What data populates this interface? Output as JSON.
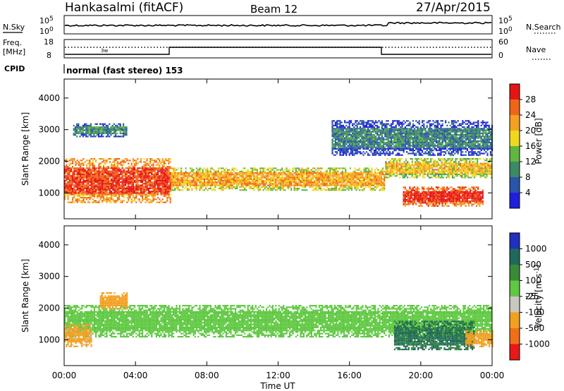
{
  "header": {
    "station": "Hankasalmi (fitACF)",
    "beam": "Beam 12",
    "date": "27/Apr/2015"
  },
  "strip_panels": {
    "nsky_label": "N.Sky",
    "nsearch_label": "N.Search",
    "nsky_ticks": [
      "10^5",
      "10^0"
    ],
    "nsearch_ticks": [
      "10^5",
      "10^0"
    ],
    "freq_label_1": "Freq.",
    "freq_label_2": "[MHz]",
    "freq_ticks": [
      "18",
      "8"
    ],
    "nave_label": "Nave",
    "nave_ticks": [
      "60",
      "0"
    ],
    "cpid_label": "CPID",
    "cpid_text": "normal (fast stereo) 153",
    "note_text": "3w"
  },
  "x_axis": {
    "ticks": [
      "00:00",
      "04:00",
      "08:00",
      "12:00",
      "16:00",
      "20:00",
      "00:00"
    ],
    "label": "Time UT"
  },
  "y_axis": {
    "label": "Slant Range [km]",
    "ticks": [
      "4000",
      "3000",
      "2000",
      "1000"
    ]
  },
  "power_colorbar": {
    "label": "Power [dB]",
    "ticks": [
      "28",
      "24",
      "20",
      "16",
      "12",
      "8",
      "4"
    ],
    "colors": [
      "#1f1fe0",
      "#2a55a8",
      "#3c8a64",
      "#5fb640",
      "#f0d820",
      "#f5a020",
      "#f06418",
      "#e81414"
    ]
  },
  "velocity_colorbar": {
    "label": "Velocity [m s^-1]",
    "ticks": [
      "1000",
      "500",
      "100",
      "25",
      "-25",
      "-100",
      "-500",
      "-1000"
    ],
    "colors": [
      "#2030c0",
      "#1f6a5a",
      "#3a8a3a",
      "#5ec840",
      "#c8c8c0",
      "#f2a020",
      "#f07018",
      "#e81818"
    ]
  },
  "chart_data": [
    {
      "type": "heatmap",
      "title": "Power",
      "xlabel": "Time UT",
      "ylabel": "Slant Range [km]",
      "x_range": [
        "00:00",
        "24:00"
      ],
      "ylim": [
        180,
        4600
      ],
      "colorbar_label": "Power [dB]",
      "clim": [
        0,
        32
      ],
      "bands": [
        {
          "t_start": 0,
          "t_end": 6,
          "range_low": 700,
          "range_high": 2100,
          "power_db": 26
        },
        {
          "t_start": 6,
          "t_end": 18,
          "range_low": 1100,
          "range_high": 1800,
          "power_db": 20
        },
        {
          "t_start": 18,
          "t_end": 24,
          "range_low": 1500,
          "range_high": 2100,
          "power_db": 18
        },
        {
          "t_start": 19,
          "t_end": 23.5,
          "range_low": 600,
          "range_high": 1200,
          "power_db": 28
        },
        {
          "t_start": 0.5,
          "t_end": 3.5,
          "range_low": 2800,
          "range_high": 3200,
          "power_db": 8
        },
        {
          "t_start": 15,
          "t_end": 24,
          "range_low": 2200,
          "range_high": 3300,
          "power_db": 7
        }
      ]
    },
    {
      "type": "heatmap",
      "title": "Velocity",
      "xlabel": "Time UT",
      "ylabel": "Slant Range [km]",
      "x_range": [
        "00:00",
        "24:00"
      ],
      "ylim": [
        180,
        4600
      ],
      "colorbar_label": "Velocity [m s^-1]",
      "clim": [
        -1000,
        1000
      ],
      "bands": [
        {
          "t_start": 0,
          "t_end": 24,
          "range_low": 1100,
          "range_high": 2100,
          "velocity": 0
        },
        {
          "t_start": 0,
          "t_end": 1.5,
          "range_low": 800,
          "range_high": 1500,
          "velocity": -200
        },
        {
          "t_start": 2,
          "t_end": 3.5,
          "range_low": 2000,
          "range_high": 2500,
          "velocity": -250
        },
        {
          "t_start": 18.5,
          "t_end": 23,
          "range_low": 700,
          "range_high": 1600,
          "velocity": 150
        },
        {
          "t_start": 22.5,
          "t_end": 24,
          "range_low": 800,
          "range_high": 1300,
          "velocity": -300
        }
      ]
    }
  ]
}
